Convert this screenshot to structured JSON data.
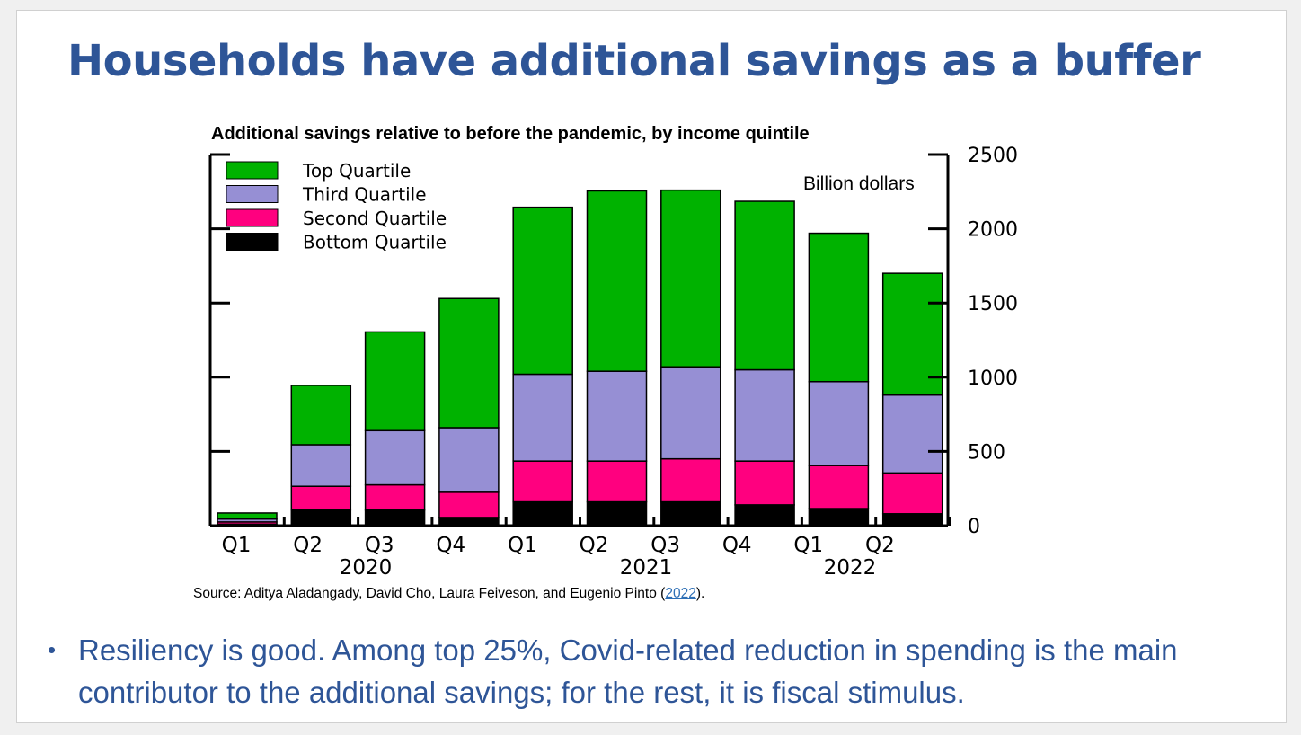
{
  "slide": {
    "title": "Households have additional savings as a buffer",
    "source_prefix": "Source: Aditya Aladangady, David Cho, Laura Feiveson, and Eugenio Pinto (",
    "source_link": "2022",
    "source_suffix": ").",
    "bullet_text": "Resiliency is good.  Among top 25%, Covid-related reduction in spending is the main contributor to the additional savings; for the rest, it is fiscal stimulus.",
    "title_color": "#2e5597",
    "bullet_color": "#2e5597"
  },
  "chart_data": {
    "type": "bar",
    "stacked": true,
    "title": "Additional savings relative to before the pandemic, by income quintile",
    "ylabel": "Billion dollars",
    "ylim": [
      0,
      2500
    ],
    "yticks": [
      0,
      500,
      1000,
      1500,
      2000,
      2500
    ],
    "y_axis_side": "right",
    "legend_position": "top-left",
    "categories": [
      "Q1",
      "Q2",
      "Q3",
      "Q4",
      "Q1",
      "Q2",
      "Q3",
      "Q4",
      "Q1",
      "Q2"
    ],
    "years": [
      {
        "label": "2020",
        "quarters": [
          0,
          3
        ]
      },
      {
        "label": "2021",
        "quarters": [
          4,
          7
        ]
      },
      {
        "label": "2022",
        "quarters": [
          8,
          9
        ]
      }
    ],
    "x_tick_labels": [
      "Q1",
      "Q2",
      "Q3",
      "Q4",
      "Q1",
      "Q2",
      "Q3",
      "Q4",
      "Q1",
      "Q2"
    ],
    "series": [
      {
        "name": "Bottom Quartile",
        "color": "#000000",
        "values": [
          10,
          105,
          105,
          55,
          160,
          160,
          160,
          140,
          115,
          80
        ]
      },
      {
        "name": "Second Quartile",
        "color": "#ff007f",
        "values": [
          15,
          160,
          170,
          170,
          275,
          275,
          290,
          295,
          290,
          275
        ]
      },
      {
        "name": "Third Quartile",
        "color": "#968fd4",
        "values": [
          20,
          280,
          365,
          435,
          585,
          605,
          620,
          615,
          565,
          525
        ]
      },
      {
        "name": "Top Quartile",
        "color": "#00b200",
        "values": [
          40,
          400,
          665,
          870,
          1125,
          1215,
          1190,
          1135,
          1000,
          820
        ]
      }
    ],
    "legend_order": [
      "Top Quartile",
      "Third Quartile",
      "Second Quartile",
      "Bottom Quartile"
    ]
  }
}
